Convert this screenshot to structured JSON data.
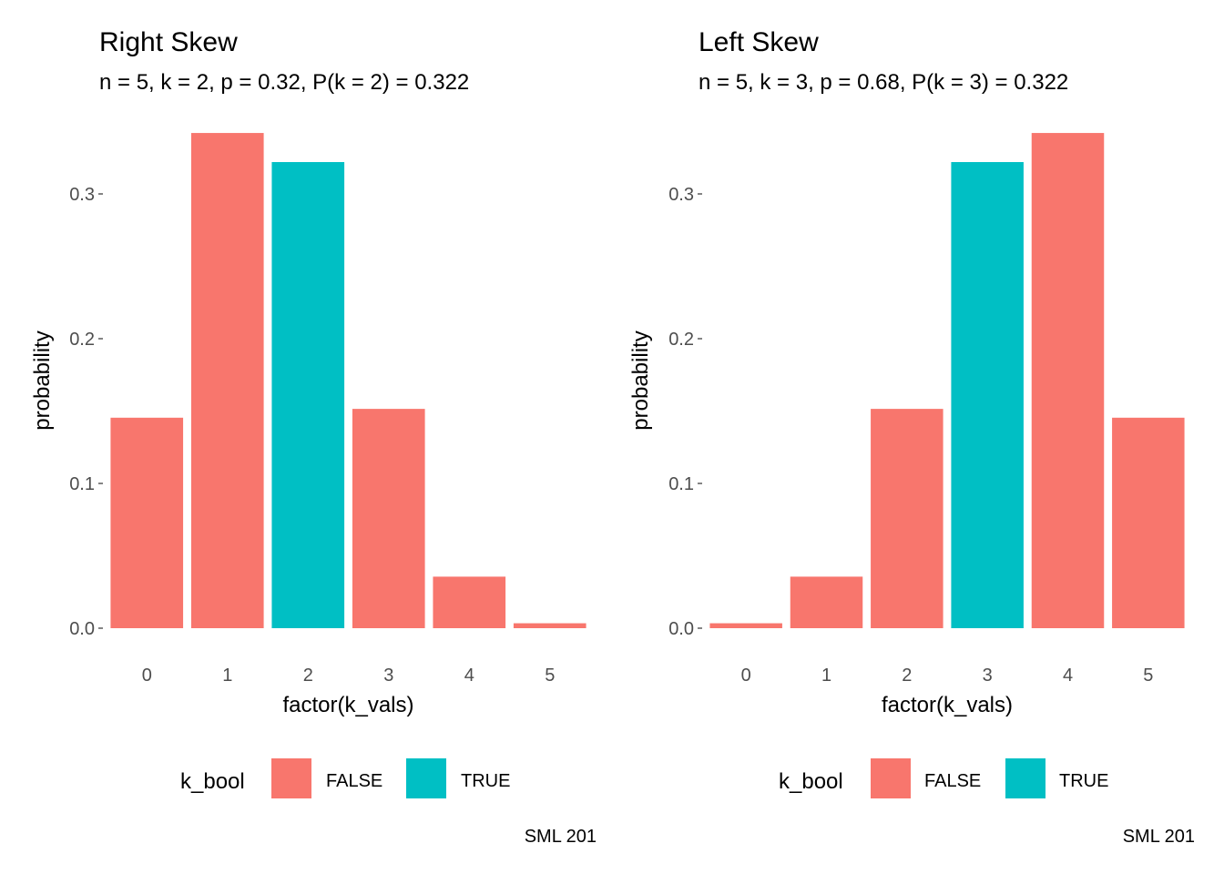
{
  "chart_data": [
    {
      "type": "bar",
      "title": "Right Skew",
      "subtitle": "n = 5, k = 2, p = 0.32, P(k = 2) = 0.322",
      "xlabel": "factor(k_vals)",
      "ylabel": "probability",
      "categories": [
        "0",
        "1",
        "2",
        "3",
        "4",
        "5"
      ],
      "values": [
        0.1454,
        0.3421,
        0.322,
        0.1515,
        0.0356,
        0.0034
      ],
      "highlight": [
        false,
        false,
        true,
        false,
        false,
        false
      ],
      "ylim": [
        0,
        0.342
      ],
      "yticks": [
        0.0,
        0.1,
        0.2,
        0.3
      ],
      "ytick_labels": [
        "0.0",
        "0.1",
        "0.2",
        "0.3"
      ],
      "grid": false,
      "legend": {
        "title": "k_bool",
        "position": "bottom",
        "entries": [
          {
            "label": "FALSE",
            "color": "#f8766d"
          },
          {
            "label": "TRUE",
            "color": "#00bfc4"
          }
        ]
      },
      "caption": "SML 201"
    },
    {
      "type": "bar",
      "title": "Left Skew",
      "subtitle": "n = 5, k = 3, p = 0.68, P(k = 3) = 0.322",
      "xlabel": "factor(k_vals)",
      "ylabel": "probability",
      "categories": [
        "0",
        "1",
        "2",
        "3",
        "4",
        "5"
      ],
      "values": [
        0.0034,
        0.0356,
        0.1515,
        0.322,
        0.3421,
        0.1454
      ],
      "highlight": [
        false,
        false,
        false,
        true,
        false,
        false
      ],
      "ylim": [
        0,
        0.342
      ],
      "yticks": [
        0.0,
        0.1,
        0.2,
        0.3
      ],
      "ytick_labels": [
        "0.0",
        "0.1",
        "0.2",
        "0.3"
      ],
      "grid": false,
      "legend": {
        "title": "k_bool",
        "position": "bottom",
        "entries": [
          {
            "label": "FALSE",
            "color": "#f8766d"
          },
          {
            "label": "TRUE",
            "color": "#00bfc4"
          }
        ]
      },
      "caption": "SML 201"
    }
  ],
  "colors": {
    "false_fill": "#f8766d",
    "true_fill": "#00bfc4",
    "tick_text": "#4d4d4d",
    "tick_mark": "#333333"
  }
}
